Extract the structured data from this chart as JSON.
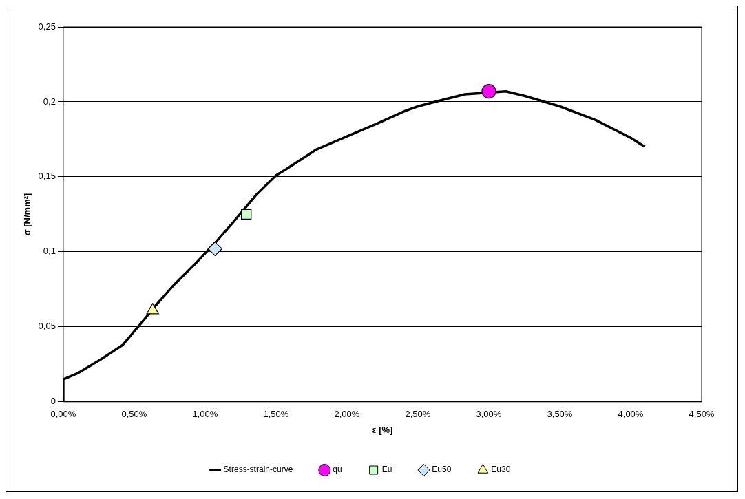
{
  "chart_data": {
    "type": "line",
    "xlabel": "ε [%]",
    "ylabel": "σ [N/mm²]",
    "xlim": [
      0,
      4.5
    ],
    "ylim": [
      0,
      0.25
    ],
    "xticks": [
      {
        "value": 0,
        "label": "0,00%"
      },
      {
        "value": 0.5,
        "label": "0,50%"
      },
      {
        "value": 1,
        "label": "1,00%"
      },
      {
        "value": 1.5,
        "label": "1,50%"
      },
      {
        "value": 2,
        "label": "2,00%"
      },
      {
        "value": 2.5,
        "label": "2,50%"
      },
      {
        "value": 3,
        "label": "3,00%"
      },
      {
        "value": 3.5,
        "label": "3,50%"
      },
      {
        "value": 4,
        "label": "4,00%"
      },
      {
        "value": 4.5,
        "label": "4,50%"
      }
    ],
    "yticks": [
      0,
      {
        "value": 0.05,
        "label": "0,05"
      },
      {
        "value": 0.1,
        "label": "0,1"
      },
      {
        "value": 0.15,
        "label": "0,15"
      },
      {
        "value": 0.2,
        "label": "0,2"
      },
      {
        "value": 0.25,
        "label": "0,25"
      }
    ],
    "grid": "y",
    "legend": "bottom",
    "series": [
      {
        "name": "Stress-strain-curve",
        "color": "#000000",
        "marker": "none",
        "x": [
          0,
          0,
          0.1,
          0.26,
          0.42,
          0.5,
          0.58,
          0.64,
          0.78,
          0.94,
          1.07,
          1.2,
          1.36,
          1.5,
          1.57,
          1.78,
          2,
          2.2,
          2.41,
          2.5,
          2.62,
          2.83,
          3.12,
          3.25,
          3.5,
          3.75,
          4,
          4.1
        ],
        "values": [
          0,
          0.015,
          0.019,
          0.028,
          0.038,
          0.047,
          0.056,
          0.063,
          0.078,
          0.093,
          0.106,
          0.12,
          0.138,
          0.151,
          0.155,
          0.168,
          0.177,
          0.185,
          0.194,
          0.197,
          0.2,
          0.205,
          0.207,
          0.204,
          0.197,
          0.188,
          0.176,
          0.17
        ]
      },
      {
        "name": "qu",
        "type": "scatter",
        "color": "#ff00ff",
        "marker": "circle",
        "x": [
          3.0
        ],
        "values": [
          0.207
        ]
      },
      {
        "name": "Eu",
        "type": "scatter",
        "color": "#ccffcc",
        "marker": "square",
        "x": [
          1.29
        ],
        "values": [
          0.125
        ]
      },
      {
        "name": "Eu50",
        "type": "scatter",
        "color": "#cce5ff",
        "marker": "diamond",
        "x": [
          1.07
        ],
        "values": [
          0.102
        ]
      },
      {
        "name": "Eu30",
        "type": "scatter",
        "color": "#ffff99",
        "marker": "triangle",
        "x": [
          0.63
        ],
        "values": [
          0.061
        ]
      }
    ]
  }
}
